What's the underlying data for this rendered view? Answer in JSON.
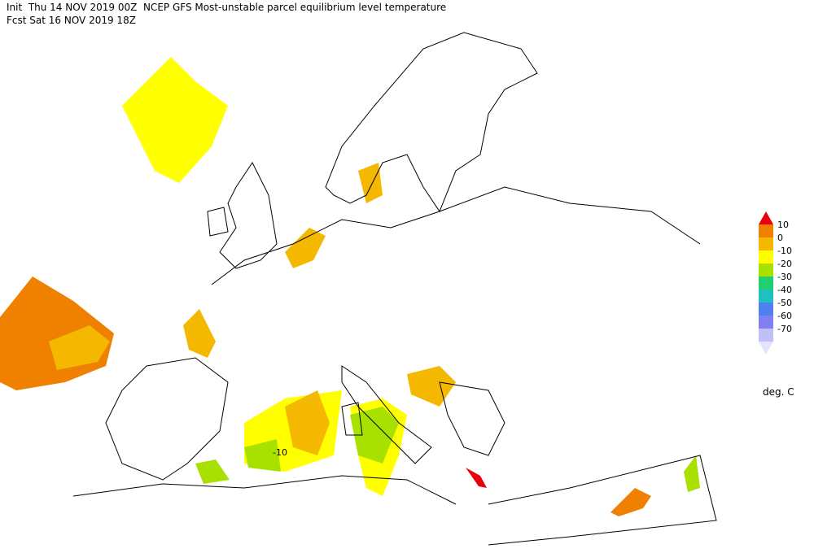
{
  "header": {
    "line1": "Init  Thu 14 NOV 2019 00Z  NCEP GFS Most-unstable parcel equilibrium level temperature",
    "line2": "Fcst Sat 16 NOV 2019 18Z"
  },
  "legend": {
    "unit": "deg. C",
    "labels": [
      "10",
      "0",
      "-10",
      "-20",
      "-30",
      "-40",
      "-50",
      "-60",
      "-70"
    ],
    "colors": [
      "#e8000b",
      "#f08000",
      "#f5b800",
      "#ffff00",
      "#a8e000",
      "#20d070",
      "#20c0c0",
      "#5080f0",
      "#8080f0",
      "#c0c0f8",
      "#e4e4ff"
    ]
  },
  "map": {
    "contour_label": "-10"
  }
}
